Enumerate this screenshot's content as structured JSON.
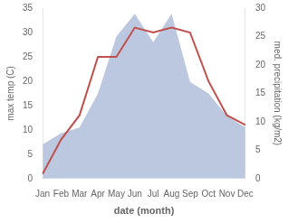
{
  "chart_data": {
    "type": "line",
    "xlabel": "date (month)",
    "ylabel": "max temp (C)",
    "y2label": "med. precipitation (kg/m2)",
    "categories": [
      "Jan",
      "Feb",
      "Mar",
      "Apr",
      "May",
      "Jun",
      "Jul",
      "Aug",
      "Sep",
      "Oct",
      "Nov",
      "Dec"
    ],
    "series": [
      {
        "type": "area",
        "color": "#bcc8e0",
        "axis": "y2",
        "values": [
          6,
          8,
          9,
          15,
          25,
          29,
          24,
          29,
          17,
          15,
          11,
          9
        ]
      },
      {
        "type": "line",
        "color": "#c0504d",
        "values": [
          1,
          8,
          13,
          25,
          25,
          31,
          30,
          31,
          30,
          20,
          13,
          11
        ]
      }
    ],
    "ylim": [
      0,
      35
    ],
    "yticks": [
      0,
      5,
      10,
      15,
      20,
      25,
      30,
      35
    ],
    "y2lim": [
      0,
      30
    ],
    "y2ticks": [
      0,
      5,
      10,
      15,
      20,
      25,
      30
    ],
    "grid": false
  }
}
